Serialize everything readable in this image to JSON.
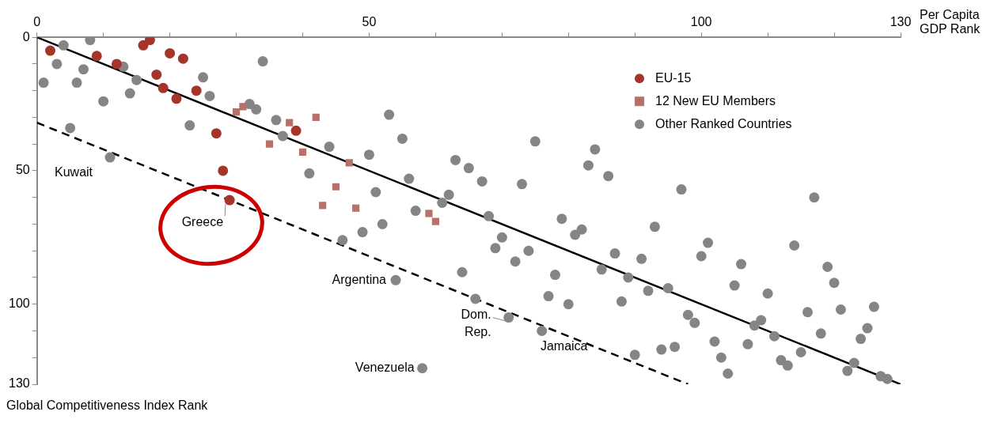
{
  "chart_data": {
    "type": "scatter",
    "xlabel": "Per Capita GDP Rank",
    "ylabel": "Global Competitiveness Index Rank",
    "xlim": [
      0,
      130
    ],
    "xticks": [
      0,
      {
        "value": 10,
        "label": null
      },
      {
        "value": 20,
        "label": null
      },
      {
        "value": 30,
        "label": null
      },
      {
        "value": 40,
        "label": null
      },
      50,
      {
        "value": 60,
        "label": null
      },
      {
        "value": 70,
        "label": null
      },
      {
        "value": 80,
        "label": null
      },
      {
        "value": 90,
        "label": null
      },
      100,
      {
        "value": 110,
        "label": null
      },
      {
        "value": 120,
        "label": null
      },
      130
    ],
    "ylim": [
      130,
      0
    ],
    "yticks": [
      0,
      {
        "value": 10,
        "label": null
      },
      {
        "value": 20,
        "label": null
      },
      {
        "value": 30,
        "label": null
      },
      {
        "value": 40,
        "label": null
      },
      50,
      {
        "value": 60,
        "label": null
      },
      {
        "value": 70,
        "label": null
      },
      {
        "value": 80,
        "label": null
      },
      {
        "value": 90,
        "label": null
      },
      100,
      {
        "value": 110,
        "label": null
      },
      {
        "value": 120,
        "label": null
      },
      130
    ],
    "grid": false,
    "legend": "top right",
    "series": [
      {
        "name": "EU-15",
        "color": "#a5342b",
        "marker": "circle",
        "x": [
          2,
          9,
          12,
          16,
          17,
          18,
          19,
          20,
          21,
          22,
          24,
          27,
          28,
          29,
          39
        ],
        "values": [
          5,
          7,
          10,
          3,
          1,
          14,
          19,
          6,
          23,
          8,
          20,
          36,
          50,
          61,
          35
        ]
      },
      {
        "name": "12 New EU Members",
        "color": "#b8706a",
        "marker": "square",
        "x": [
          30,
          31,
          35,
          38,
          40,
          42,
          43,
          45,
          47,
          48,
          59,
          60
        ],
        "values": [
          28,
          26,
          40,
          32,
          43,
          30,
          63,
          56,
          47,
          64,
          66,
          69
        ]
      },
      {
        "name": "Other Ranked Countries",
        "color": "#858585",
        "marker": "circle",
        "x": [
          1,
          4,
          3,
          8,
          6,
          7,
          5,
          10,
          11,
          13,
          14,
          15,
          23,
          25,
          26,
          34,
          32,
          33,
          36,
          37,
          44,
          41,
          53,
          55,
          50,
          75,
          84,
          83,
          86,
          63,
          65,
          67,
          73,
          56,
          51,
          62,
          61,
          57,
          68,
          52,
          49,
          46,
          79,
          82,
          81,
          70,
          69,
          74,
          72,
          87,
          85,
          64,
          78,
          54,
          77,
          80,
          66,
          71,
          76,
          58,
          97,
          117,
          93,
          89,
          91,
          88,
          92,
          95,
          101,
          100,
          90,
          94,
          96,
          98,
          99,
          102,
          103,
          104,
          105,
          106,
          107,
          108,
          109,
          110,
          111,
          112,
          113,
          115,
          114,
          116,
          118,
          119,
          120,
          121,
          122,
          123,
          124,
          125,
          126,
          127,
          128
        ],
        "values": [
          17,
          3,
          10,
          1,
          17,
          12,
          34,
          24,
          45,
          11,
          21,
          16,
          33,
          15,
          22,
          9,
          25,
          27,
          31,
          37,
          41,
          51,
          29,
          38,
          44,
          39,
          42,
          48,
          52,
          46,
          49,
          54,
          55,
          53,
          58,
          59,
          62,
          65,
          67,
          70,
          73,
          76,
          68,
          72,
          74,
          75,
          79,
          80,
          84,
          81,
          87,
          88,
          89,
          91,
          97,
          100,
          98,
          105,
          110,
          124,
          57,
          60,
          71,
          90,
          83,
          99,
          95,
          94,
          77,
          82,
          119,
          117,
          116,
          104,
          107,
          114,
          120,
          126,
          93,
          85,
          115,
          108,
          106,
          96,
          112,
          121,
          123,
          118,
          78,
          103,
          111,
          86,
          92,
          102,
          125,
          122,
          113,
          109,
          101,
          127,
          128
        ]
      },
      {
        "type": "line",
        "color": "#000000",
        "line_style": "solid",
        "marker": "none",
        "x": [
          0,
          130
        ],
        "values": [
          0,
          130
        ]
      },
      {
        "type": "line",
        "color": "#000000",
        "line_style": "dashed",
        "marker": "none",
        "x": [
          0,
          98
        ],
        "values": [
          32,
          130
        ]
      }
    ],
    "annotations": [
      {
        "text": "Kuwait",
        "x": 11,
        "y": 45
      },
      {
        "text": "Greece",
        "x": 29,
        "y": 61
      },
      {
        "text": "Argentina",
        "x": 54,
        "y": 91
      },
      {
        "text": "Dom. Rep.",
        "x": 71,
        "y": 105
      },
      {
        "text": "Jamaica",
        "x": 76,
        "y": 110
      },
      {
        "text": "Venezuela",
        "x": 58,
        "y": 124
      }
    ]
  }
}
